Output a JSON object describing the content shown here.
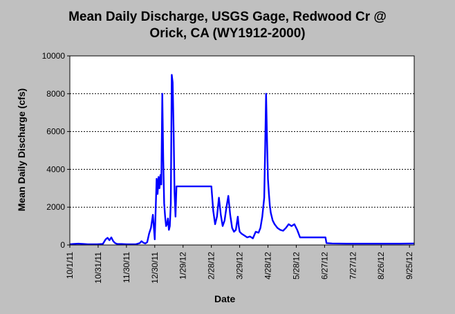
{
  "chart_data": {
    "type": "line",
    "title_lines": [
      "Mean Daily Discharge, USGS Gage, Redwood Cr @",
      "Orick, CA  (WY1912-2000)"
    ],
    "xlabel": "Date",
    "ylabel": "Mean Daily Discharge (cfs)",
    "ylim": [
      0,
      10000
    ],
    "yticks": [
      0,
      2000,
      4000,
      6000,
      8000,
      10000
    ],
    "ytick_labels": [
      "0",
      "2000",
      "4000",
      "6000",
      "8000",
      "10000"
    ],
    "xlim": [
      "2011-10-01",
      "2012-09-30"
    ],
    "xticks": [
      "2011-10-01",
      "2011-10-31",
      "2011-11-30",
      "2011-12-30",
      "2012-01-29",
      "2012-02-28",
      "2012-03-29",
      "2012-04-28",
      "2012-05-28",
      "2012-06-27",
      "2012-07-27",
      "2012-08-26",
      "2012-09-25"
    ],
    "xtick_labels": [
      "10/1/11",
      "10/31/11",
      "11/30/11",
      "12/30/11",
      "1/29/12",
      "2/28/12",
      "3/29/12",
      "4/28/12",
      "5/28/12",
      "6/27/12",
      "7/27/12",
      "8/26/12",
      "9/25/12"
    ],
    "grid": "horizontal",
    "series_color": "#0000ff",
    "series": [
      {
        "x": [
          "2011-10-01",
          "2011-10-05",
          "2011-10-10",
          "2011-10-15",
          "2011-10-20",
          "2011-10-25",
          "2011-10-30",
          "2011-11-05",
          "2011-11-08",
          "2011-11-10",
          "2011-11-12",
          "2011-11-14",
          "2011-11-16",
          "2011-11-18",
          "2011-11-20",
          "2011-11-25",
          "2011-11-30",
          "2011-12-05",
          "2011-12-10",
          "2011-12-14",
          "2011-12-16",
          "2011-12-18",
          "2011-12-20",
          "2011-12-22",
          "2011-12-24",
          "2011-12-26",
          "2011-12-28",
          "2011-12-30",
          "2012-01-01",
          "2012-01-02",
          "2012-01-03",
          "2012-01-04",
          "2012-01-05",
          "2012-01-06",
          "2012-01-07",
          "2012-01-08",
          "2012-01-09",
          "2012-01-10",
          "2012-01-11",
          "2012-01-12",
          "2012-01-13",
          "2012-01-14",
          "2012-01-15",
          "2012-01-16",
          "2012-01-17",
          "2012-01-18",
          "2012-01-19",
          "2012-01-20",
          "2012-01-21",
          "2012-01-22",
          "2012-01-23",
          "2012-01-24",
          "2012-01-25",
          "2012-01-26",
          "2012-01-27",
          "2012-01-28",
          "2012-01-29",
          "2012-01-30",
          "2012-01-31",
          "2012-02-01",
          "2012-02-02",
          "2012-02-06",
          "2012-02-10",
          "2012-02-14",
          "2012-02-18",
          "2012-02-22",
          "2012-02-26",
          "2012-02-28",
          "2012-03-01",
          "2012-03-03",
          "2012-03-05",
          "2012-03-07",
          "2012-03-09",
          "2012-03-11",
          "2012-03-13",
          "2012-03-15",
          "2012-03-17",
          "2012-03-19",
          "2012-03-21",
          "2012-03-23",
          "2012-03-25",
          "2012-03-27",
          "2012-03-28",
          "2012-03-29",
          "2012-03-31",
          "2012-04-03",
          "2012-04-06",
          "2012-04-09",
          "2012-04-12",
          "2012-04-15",
          "2012-04-18",
          "2012-04-20",
          "2012-04-22",
          "2012-04-24",
          "2012-04-25",
          "2012-04-26",
          "2012-04-27",
          "2012-04-28",
          "2012-04-29",
          "2012-04-30",
          "2012-05-01",
          "2012-05-03",
          "2012-05-05",
          "2012-05-08",
          "2012-05-11",
          "2012-05-14",
          "2012-05-17",
          "2012-05-20",
          "2012-05-23",
          "2012-05-26",
          "2012-05-29",
          "2012-06-01",
          "2012-06-03",
          "2012-06-05",
          "2012-06-15",
          "2012-06-25",
          "2012-06-28",
          "2012-06-29",
          "2012-07-05",
          "2012-07-20",
          "2012-08-10",
          "2012-08-30",
          "2012-09-15",
          "2012-09-30"
        ],
        "y": [
          40,
          60,
          70,
          60,
          40,
          40,
          40,
          60,
          300,
          380,
          250,
          400,
          200,
          100,
          60,
          50,
          40,
          40,
          40,
          100,
          200,
          120,
          80,
          150,
          600,
          900,
          1600,
          300,
          3500,
          2700,
          3600,
          3000,
          3700,
          3200,
          8000,
          4500,
          2200,
          1500,
          1000,
          1100,
          1400,
          800,
          1000,
          2200,
          9000,
          8600,
          6000,
          2800,
          1500,
          3100,
          3100,
          3100,
          3100,
          3100,
          3100,
          3100,
          3100,
          3100,
          3100,
          3100,
          3100,
          3100,
          3100,
          3100,
          3100,
          3100,
          3100,
          3100,
          1800,
          1100,
          1500,
          2500,
          1600,
          1000,
          1300,
          2000,
          2600,
          1600,
          900,
          700,
          800,
          1500,
          1000,
          700,
          600,
          500,
          400,
          450,
          350,
          700,
          650,
          900,
          1500,
          2500,
          5000,
          8000,
          5500,
          3500,
          2700,
          2100,
          1700,
          1300,
          1100,
          900,
          800,
          750,
          900,
          1100,
          1000,
          1100,
          800,
          400,
          400,
          400,
          400,
          400,
          400,
          100,
          80,
          70,
          70,
          70,
          70,
          80
        ]
      }
    ]
  }
}
